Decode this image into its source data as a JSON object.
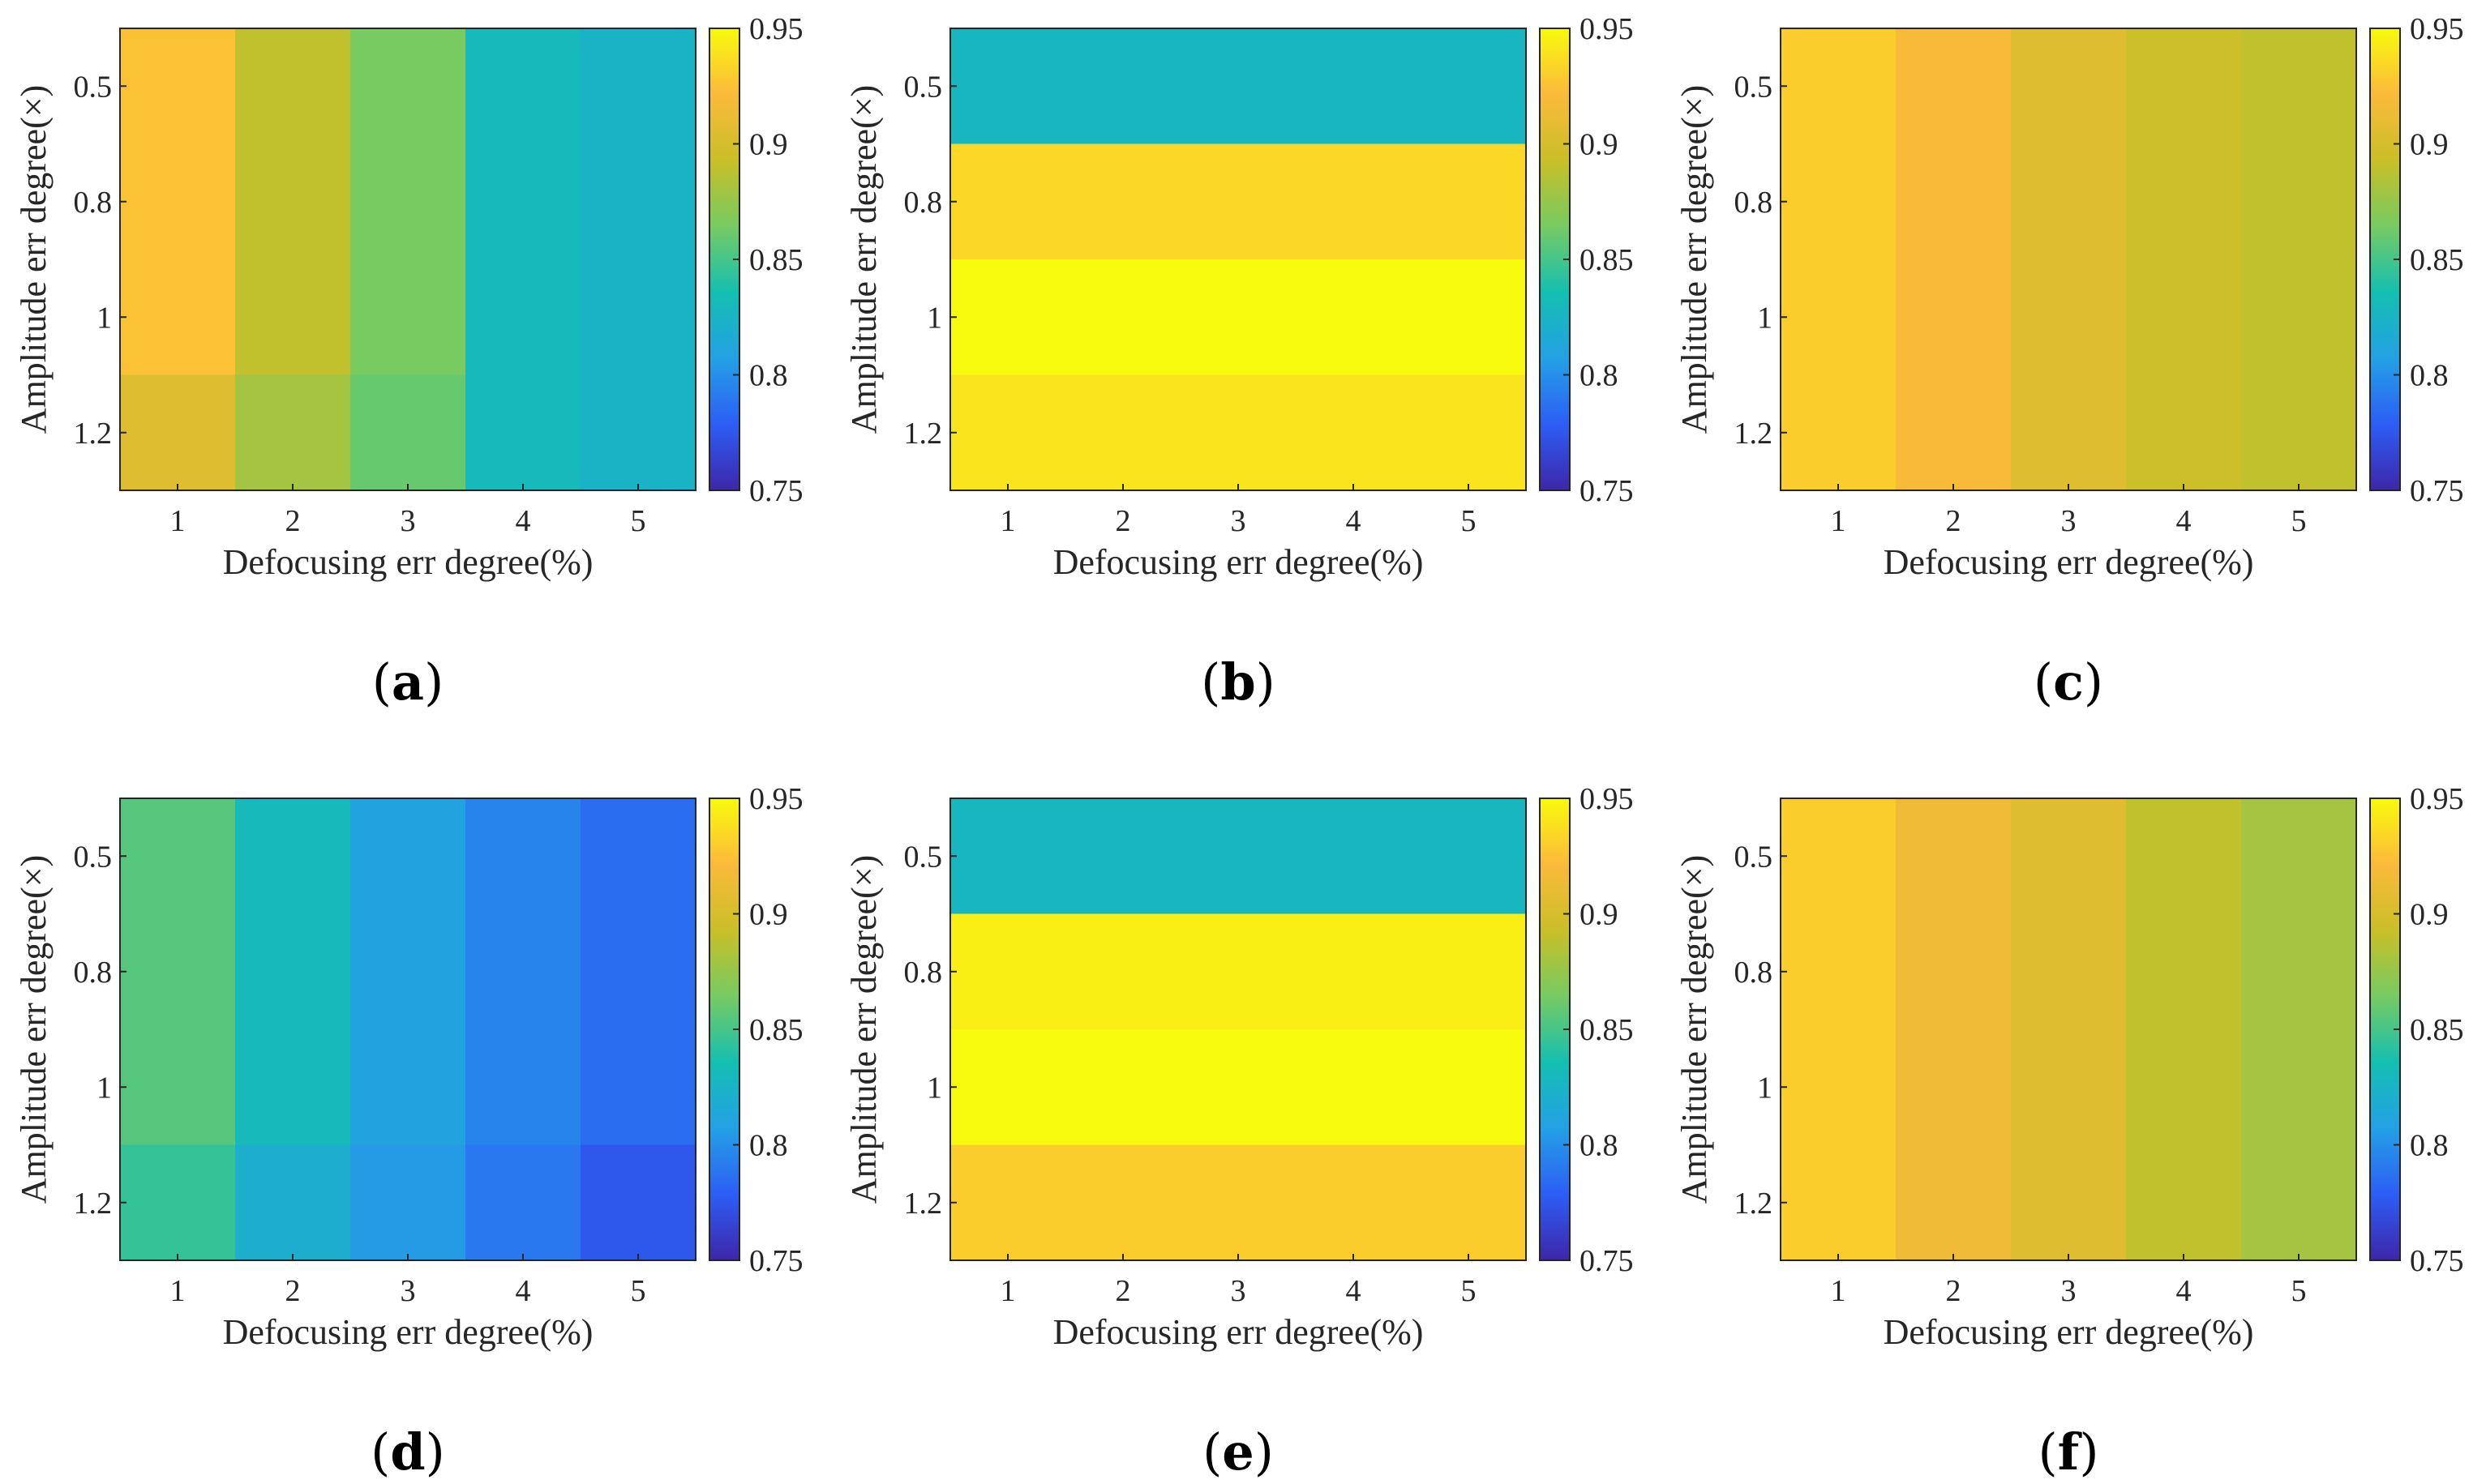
{
  "figure": {
    "colormap": "parula",
    "colormap_stops": [
      "#3e26a8",
      "#2c5ef5",
      "#24a0e5",
      "#14bfb1",
      "#76cb62",
      "#c9bf27",
      "#fbba3b",
      "#f8fa0d"
    ],
    "chart_data": [
      {
        "type": "heatmap",
        "panel_label": "a",
        "xlabel": "Defocusing err degree(%)",
        "ylabel": "Amplitude err degree(×)",
        "x_categories": [
          "1",
          "2",
          "3",
          "4",
          "5"
        ],
        "y_categories": [
          "0.5",
          "0.8",
          "1",
          "1.2"
        ],
        "values": [
          [
            0.925,
            0.89,
            0.865,
            0.83,
            0.825
          ],
          [
            0.925,
            0.89,
            0.865,
            0.83,
            0.825
          ],
          [
            0.925,
            0.89,
            0.865,
            0.83,
            0.825
          ],
          [
            0.905,
            0.88,
            0.86,
            0.83,
            0.825
          ]
        ],
        "colorbar": {
          "range": [
            0.75,
            0.95
          ],
          "ticks": [
            "0.75",
            "0.8",
            "0.85",
            "0.9",
            "0.95"
          ]
        }
      },
      {
        "type": "heatmap",
        "panel_label": "b",
        "xlabel": "Defocusing err degree(%)",
        "ylabel": "Amplitude err degree(×)",
        "x_categories": [
          "1",
          "2",
          "3",
          "4",
          "5"
        ],
        "y_categories": [
          "0.5",
          "0.8",
          "1",
          "1.2"
        ],
        "values": [
          [
            0.828,
            0.828,
            0.828,
            0.828,
            0.828
          ],
          [
            0.935,
            0.935,
            0.935,
            0.935,
            0.935
          ],
          [
            0.95,
            0.95,
            0.95,
            0.95,
            0.95
          ],
          [
            0.94,
            0.94,
            0.94,
            0.94,
            0.94
          ]
        ],
        "colorbar": {
          "range": [
            0.75,
            0.95
          ],
          "ticks": [
            "0.75",
            "0.8",
            "0.85",
            "0.9",
            "0.95"
          ]
        }
      },
      {
        "type": "heatmap",
        "panel_label": "c",
        "xlabel": "Defocusing err degree(%)",
        "ylabel": "Amplitude err degree(×)",
        "x_categories": [
          "1",
          "2",
          "3",
          "4",
          "5"
        ],
        "y_categories": [
          "0.5",
          "0.8",
          "1",
          "1.2"
        ],
        "values": [
          [
            0.93,
            0.92,
            0.905,
            0.895,
            0.89
          ],
          [
            0.93,
            0.92,
            0.905,
            0.895,
            0.89
          ],
          [
            0.93,
            0.92,
            0.905,
            0.895,
            0.89
          ],
          [
            0.93,
            0.92,
            0.905,
            0.895,
            0.89
          ]
        ],
        "colorbar": {
          "range": [
            0.75,
            0.95
          ],
          "ticks": [
            "0.75",
            "0.8",
            "0.85",
            "0.9",
            "0.95"
          ]
        }
      },
      {
        "type": "heatmap",
        "panel_label": "d",
        "xlabel": "Defocusing err degree(%)",
        "ylabel": "Amplitude err degree(×)",
        "x_categories": [
          "1",
          "2",
          "3",
          "4",
          "5"
        ],
        "y_categories": [
          "0.5",
          "0.8",
          "1",
          "1.2"
        ],
        "values": [
          [
            0.855,
            0.83,
            0.81,
            0.795,
            0.785
          ],
          [
            0.855,
            0.83,
            0.81,
            0.795,
            0.785
          ],
          [
            0.855,
            0.83,
            0.81,
            0.795,
            0.785
          ],
          [
            0.845,
            0.82,
            0.805,
            0.79,
            0.775
          ]
        ],
        "colorbar": {
          "range": [
            0.75,
            0.95
          ],
          "ticks": [
            "0.75",
            "0.8",
            "0.85",
            "0.9",
            "0.95"
          ]
        }
      },
      {
        "type": "heatmap",
        "panel_label": "e",
        "xlabel": "Defocusing err degree(%)",
        "ylabel": "Amplitude err degree(×)",
        "x_categories": [
          "1",
          "2",
          "3",
          "4",
          "5"
        ],
        "y_categories": [
          "0.5",
          "0.8",
          "1",
          "1.2"
        ],
        "values": [
          [
            0.828,
            0.828,
            0.828,
            0.828,
            0.828
          ],
          [
            0.945,
            0.945,
            0.945,
            0.945,
            0.945
          ],
          [
            0.95,
            0.95,
            0.95,
            0.95,
            0.95
          ],
          [
            0.93,
            0.93,
            0.93,
            0.93,
            0.93
          ]
        ],
        "colorbar": {
          "range": [
            0.75,
            0.95
          ],
          "ticks": [
            "0.75",
            "0.8",
            "0.85",
            "0.9",
            "0.95"
          ]
        }
      },
      {
        "type": "heatmap",
        "panel_label": "f",
        "xlabel": "Defocusing err degree(%)",
        "ylabel": "Amplitude err degree(×)",
        "x_categories": [
          "1",
          "2",
          "3",
          "4",
          "5"
        ],
        "y_categories": [
          "0.5",
          "0.8",
          "1",
          "1.2"
        ],
        "values": [
          [
            0.93,
            0.915,
            0.905,
            0.89,
            0.88
          ],
          [
            0.93,
            0.915,
            0.905,
            0.89,
            0.88
          ],
          [
            0.93,
            0.915,
            0.905,
            0.89,
            0.88
          ],
          [
            0.93,
            0.915,
            0.905,
            0.89,
            0.88
          ]
        ],
        "colorbar": {
          "range": [
            0.75,
            0.95
          ],
          "ticks": [
            "0.75",
            "0.8",
            "0.85",
            "0.9",
            "0.95"
          ]
        }
      }
    ]
  }
}
